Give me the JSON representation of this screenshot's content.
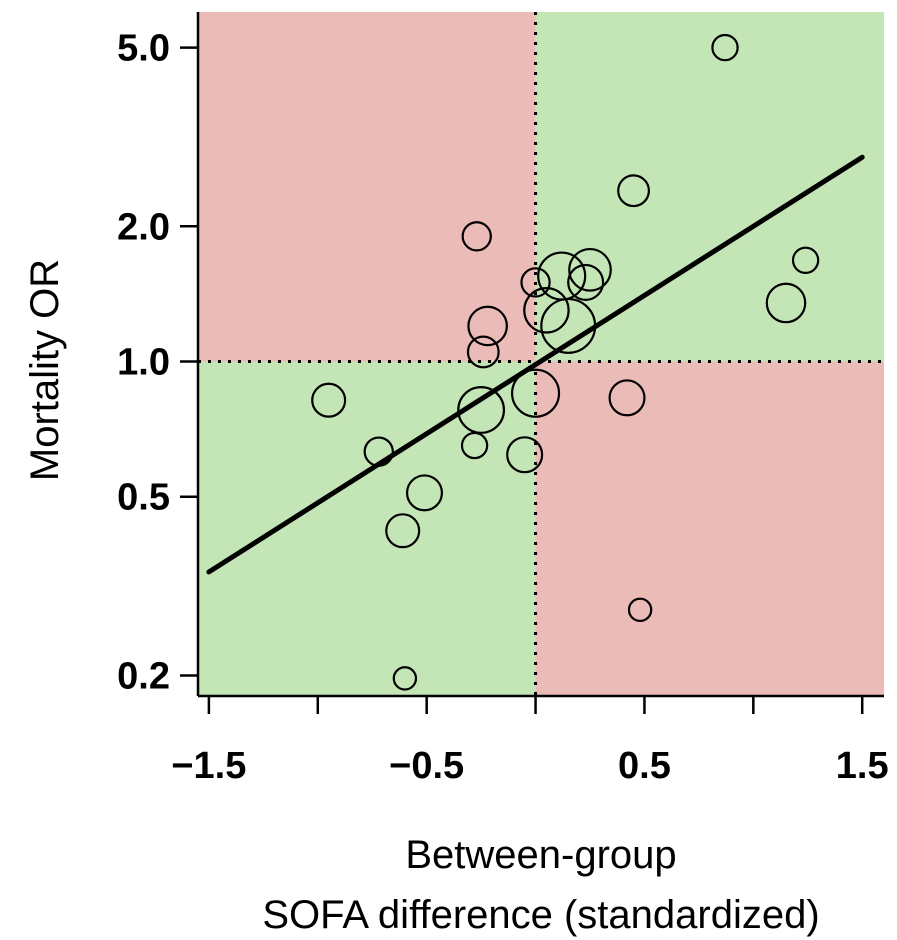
{
  "chart_data": {
    "type": "scatter",
    "title": "",
    "xlabel_lines": [
      "Between-group",
      "SOFA difference (standardized)"
    ],
    "ylabel": "Mortality OR",
    "y_scale": "log",
    "xlim": [
      -1.55,
      1.6
    ],
    "ylim": [
      0.18,
      6.0
    ],
    "x_ticks": [
      -1.5,
      -1.0,
      -0.5,
      0.0,
      0.5,
      1.0,
      1.5
    ],
    "x_tick_labels": [
      {
        "value": -1.5,
        "label": "−1.5"
      },
      {
        "value": -0.5,
        "label": "−0.5"
      },
      {
        "value": 0.5,
        "label": "0.5"
      },
      {
        "value": 1.5,
        "label": "1.5"
      }
    ],
    "y_ticks": [
      {
        "value": 0.2,
        "label": "0.2"
      },
      {
        "value": 0.5,
        "label": "0.5"
      },
      {
        "value": 1.0,
        "label": "1.0"
      },
      {
        "value": 2.0,
        "label": "2.0"
      },
      {
        "value": 5.0,
        "label": "5.0"
      }
    ],
    "reference_lines": {
      "x": 0,
      "y": 1.0
    },
    "quadrant_colors": {
      "agree": "#c4e5b6",
      "disagree": "#ebbcb7"
    },
    "regression_line": {
      "x": [
        -1.5,
        1.5
      ],
      "y": [
        0.34,
        2.85
      ]
    },
    "points": [
      {
        "x": 0.87,
        "y": 5.0,
        "weight": 1
      },
      {
        "x": 0.45,
        "y": 2.4,
        "weight": 2
      },
      {
        "x": -0.27,
        "y": 1.9,
        "weight": 1.5
      },
      {
        "x": 1.24,
        "y": 1.68,
        "weight": 1
      },
      {
        "x": 0.12,
        "y": 1.55,
        "weight": 7
      },
      {
        "x": 0.25,
        "y": 1.6,
        "weight": 5
      },
      {
        "x": 0.23,
        "y": 1.5,
        "weight": 3
      },
      {
        "x": 0.0,
        "y": 1.5,
        "weight": 1.5
      },
      {
        "x": 0.05,
        "y": 1.3,
        "weight": 6
      },
      {
        "x": 0.15,
        "y": 1.2,
        "weight": 10
      },
      {
        "x": 1.15,
        "y": 1.35,
        "weight": 4
      },
      {
        "x": -0.22,
        "y": 1.2,
        "weight": 4
      },
      {
        "x": -0.24,
        "y": 1.05,
        "weight": 2
      },
      {
        "x": -0.95,
        "y": 0.82,
        "weight": 2.5
      },
      {
        "x": -0.25,
        "y": 0.78,
        "weight": 6.5
      },
      {
        "x": 0.0,
        "y": 0.85,
        "weight": 7
      },
      {
        "x": 0.42,
        "y": 0.83,
        "weight": 3
      },
      {
        "x": -0.72,
        "y": 0.63,
        "weight": 1.5
      },
      {
        "x": -0.28,
        "y": 0.65,
        "weight": 1
      },
      {
        "x": -0.05,
        "y": 0.62,
        "weight": 3
      },
      {
        "x": -0.51,
        "y": 0.51,
        "weight": 3
      },
      {
        "x": -0.61,
        "y": 0.42,
        "weight": 2.5
      },
      {
        "x": 0.48,
        "y": 0.28,
        "weight": 0.6
      },
      {
        "x": -0.6,
        "y": 0.197,
        "weight": 0.6
      }
    ]
  }
}
